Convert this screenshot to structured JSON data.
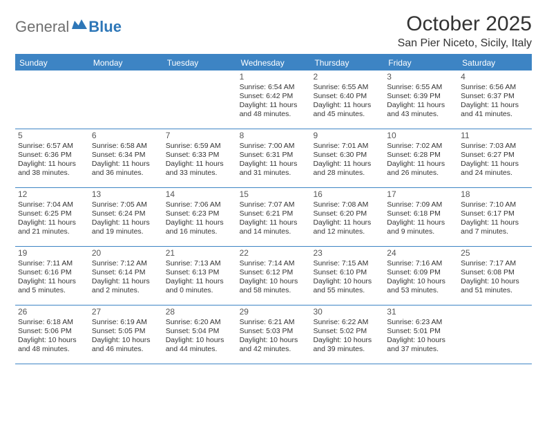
{
  "brand": {
    "general": "General",
    "blue": "Blue"
  },
  "title": "October 2025",
  "subtitle": "San Pier Niceto, Sicily, Italy",
  "colors": {
    "header_bg": "#3d84c4",
    "header_text": "#ffffff",
    "rule": "#3d84c4",
    "body_text": "#333333",
    "logo_grey": "#6f6f6f",
    "logo_blue": "#2e77b8",
    "page_bg": "#ffffff"
  },
  "weekdays": [
    "Sunday",
    "Monday",
    "Tuesday",
    "Wednesday",
    "Thursday",
    "Friday",
    "Saturday"
  ],
  "weeks": [
    [
      null,
      null,
      null,
      {
        "n": "1",
        "sr": "6:54 AM",
        "ss": "6:42 PM",
        "dl": "11 hours and 48 minutes."
      },
      {
        "n": "2",
        "sr": "6:55 AM",
        "ss": "6:40 PM",
        "dl": "11 hours and 45 minutes."
      },
      {
        "n": "3",
        "sr": "6:55 AM",
        "ss": "6:39 PM",
        "dl": "11 hours and 43 minutes."
      },
      {
        "n": "4",
        "sr": "6:56 AM",
        "ss": "6:37 PM",
        "dl": "11 hours and 41 minutes."
      }
    ],
    [
      {
        "n": "5",
        "sr": "6:57 AM",
        "ss": "6:36 PM",
        "dl": "11 hours and 38 minutes."
      },
      {
        "n": "6",
        "sr": "6:58 AM",
        "ss": "6:34 PM",
        "dl": "11 hours and 36 minutes."
      },
      {
        "n": "7",
        "sr": "6:59 AM",
        "ss": "6:33 PM",
        "dl": "11 hours and 33 minutes."
      },
      {
        "n": "8",
        "sr": "7:00 AM",
        "ss": "6:31 PM",
        "dl": "11 hours and 31 minutes."
      },
      {
        "n": "9",
        "sr": "7:01 AM",
        "ss": "6:30 PM",
        "dl": "11 hours and 28 minutes."
      },
      {
        "n": "10",
        "sr": "7:02 AM",
        "ss": "6:28 PM",
        "dl": "11 hours and 26 minutes."
      },
      {
        "n": "11",
        "sr": "7:03 AM",
        "ss": "6:27 PM",
        "dl": "11 hours and 24 minutes."
      }
    ],
    [
      {
        "n": "12",
        "sr": "7:04 AM",
        "ss": "6:25 PM",
        "dl": "11 hours and 21 minutes."
      },
      {
        "n": "13",
        "sr": "7:05 AM",
        "ss": "6:24 PM",
        "dl": "11 hours and 19 minutes."
      },
      {
        "n": "14",
        "sr": "7:06 AM",
        "ss": "6:23 PM",
        "dl": "11 hours and 16 minutes."
      },
      {
        "n": "15",
        "sr": "7:07 AM",
        "ss": "6:21 PM",
        "dl": "11 hours and 14 minutes."
      },
      {
        "n": "16",
        "sr": "7:08 AM",
        "ss": "6:20 PM",
        "dl": "11 hours and 12 minutes."
      },
      {
        "n": "17",
        "sr": "7:09 AM",
        "ss": "6:18 PM",
        "dl": "11 hours and 9 minutes."
      },
      {
        "n": "18",
        "sr": "7:10 AM",
        "ss": "6:17 PM",
        "dl": "11 hours and 7 minutes."
      }
    ],
    [
      {
        "n": "19",
        "sr": "7:11 AM",
        "ss": "6:16 PM",
        "dl": "11 hours and 5 minutes."
      },
      {
        "n": "20",
        "sr": "7:12 AM",
        "ss": "6:14 PM",
        "dl": "11 hours and 2 minutes."
      },
      {
        "n": "21",
        "sr": "7:13 AM",
        "ss": "6:13 PM",
        "dl": "11 hours and 0 minutes."
      },
      {
        "n": "22",
        "sr": "7:14 AM",
        "ss": "6:12 PM",
        "dl": "10 hours and 58 minutes."
      },
      {
        "n": "23",
        "sr": "7:15 AM",
        "ss": "6:10 PM",
        "dl": "10 hours and 55 minutes."
      },
      {
        "n": "24",
        "sr": "7:16 AM",
        "ss": "6:09 PM",
        "dl": "10 hours and 53 minutes."
      },
      {
        "n": "25",
        "sr": "7:17 AM",
        "ss": "6:08 PM",
        "dl": "10 hours and 51 minutes."
      }
    ],
    [
      {
        "n": "26",
        "sr": "6:18 AM",
        "ss": "5:06 PM",
        "dl": "10 hours and 48 minutes."
      },
      {
        "n": "27",
        "sr": "6:19 AM",
        "ss": "5:05 PM",
        "dl": "10 hours and 46 minutes."
      },
      {
        "n": "28",
        "sr": "6:20 AM",
        "ss": "5:04 PM",
        "dl": "10 hours and 44 minutes."
      },
      {
        "n": "29",
        "sr": "6:21 AM",
        "ss": "5:03 PM",
        "dl": "10 hours and 42 minutes."
      },
      {
        "n": "30",
        "sr": "6:22 AM",
        "ss": "5:02 PM",
        "dl": "10 hours and 39 minutes."
      },
      {
        "n": "31",
        "sr": "6:23 AM",
        "ss": "5:01 PM",
        "dl": "10 hours and 37 minutes."
      },
      null
    ]
  ],
  "labels": {
    "sunrise": "Sunrise:",
    "sunset": "Sunset:",
    "daylight": "Daylight:"
  }
}
